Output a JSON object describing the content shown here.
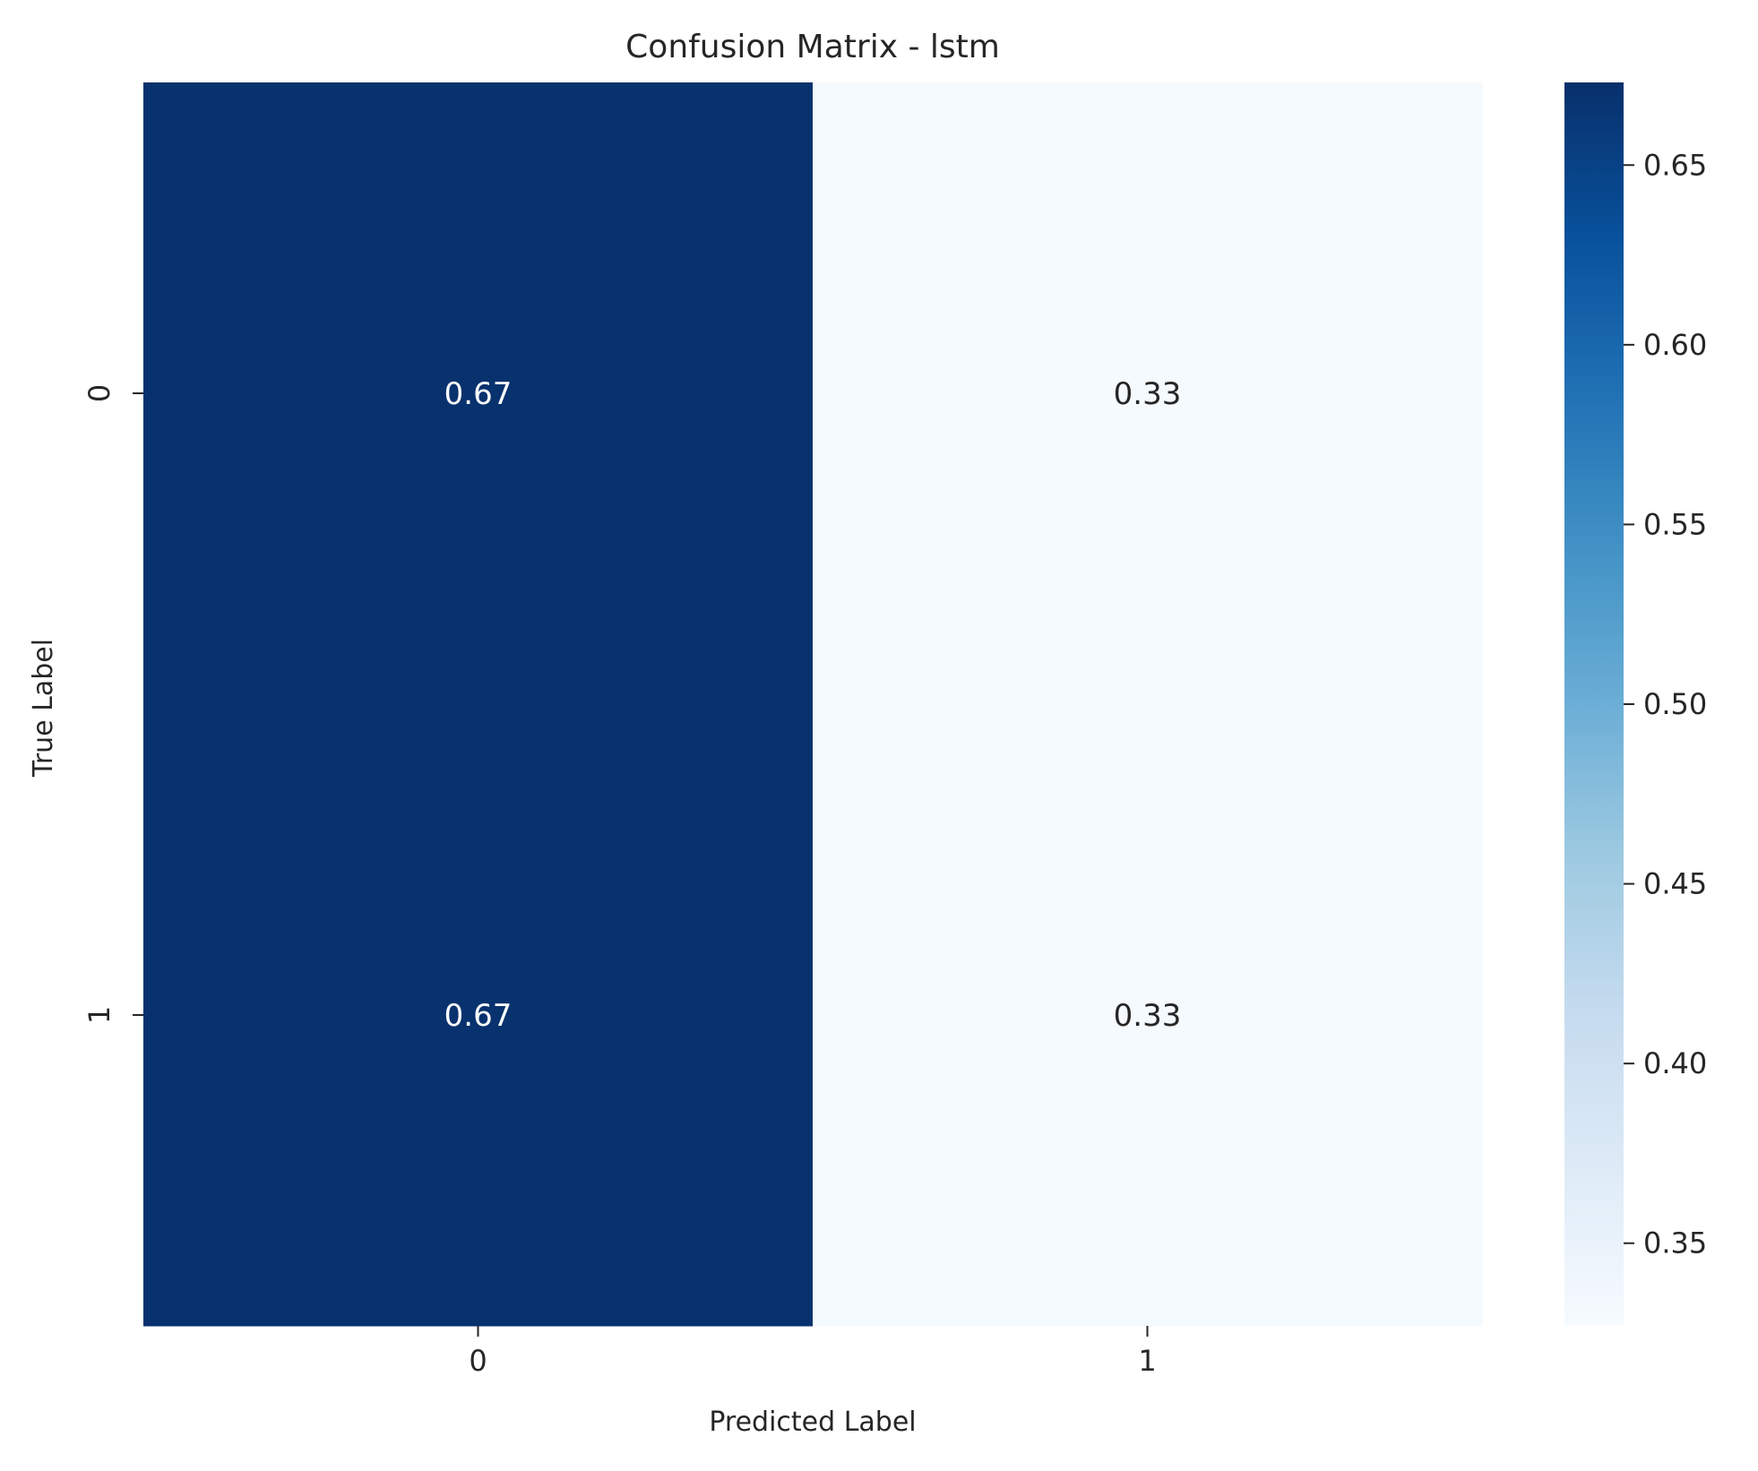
{
  "chart_data": {
    "type": "heatmap",
    "title": "Confusion Matrix - lstm",
    "xlabel": "Predicted Label",
    "ylabel": "True Label",
    "x_categories": [
      "0",
      "1"
    ],
    "y_categories": [
      "0",
      "1"
    ],
    "values": [
      [
        0.67,
        0.33
      ],
      [
        0.67,
        0.33
      ]
    ],
    "colormap": "Blues",
    "colorbar": {
      "min": 0.327,
      "max": 0.673,
      "ticks": [
        "0.35",
        "0.40",
        "0.45",
        "0.50",
        "0.55",
        "0.60",
        "0.65"
      ],
      "tick_values": [
        0.35,
        0.4,
        0.45,
        0.5,
        0.55,
        0.6,
        0.65
      ]
    },
    "grid": false,
    "colors": {
      "low": "#f7fbff",
      "high": "#08306b",
      "text_on_dark": "#ffffff",
      "text_on_light": "#262626"
    }
  }
}
